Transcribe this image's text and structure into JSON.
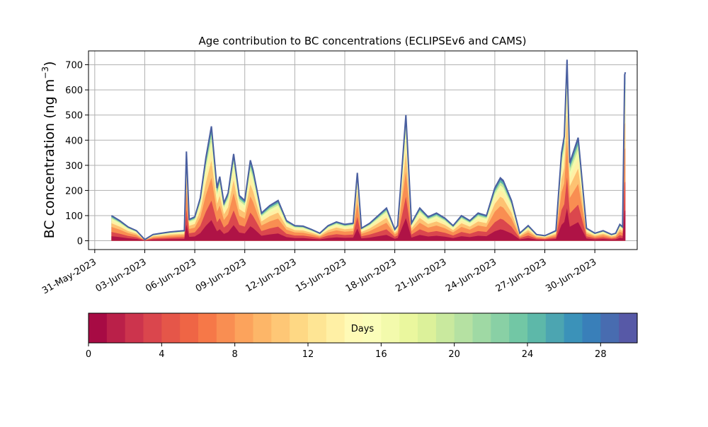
{
  "chart_data": {
    "type": "area",
    "title": "Age contribution to BC concentrations (ECLIPSEv6 and CAMS)",
    "ylabel": "BC concentration (ng m",
    "ylabel_sup": "−3",
    "ylabel_close": ")",
    "xlabel": "",
    "ylim": [
      -35,
      755
    ],
    "yticks": [
      0,
      100,
      200,
      300,
      400,
      500,
      600,
      700
    ],
    "xlim": [
      "2023-05-30T15:00",
      "2023-07-02T13:00"
    ],
    "xticks": [
      "31-May-2023",
      "03-Jun-2023",
      "06-Jun-2023",
      "09-Jun-2023",
      "12-Jun-2023",
      "15-Jun-2023",
      "18-Jun-2023",
      "21-Jun-2023",
      "24-Jun-2023",
      "27-Jun-2023",
      "30-Jun-2023"
    ],
    "xtick_dates": [
      "2023-05-31",
      "2023-06-03",
      "2023-06-06",
      "2023-06-09",
      "2023-06-12",
      "2023-06-15",
      "2023-06-18",
      "2023-06-21",
      "2023-06-24",
      "2023-06-27",
      "2023-06-30"
    ],
    "grid": true,
    "series_total": {
      "x": [
        "2023-06-01T00:00",
        "2023-06-01T12:00",
        "2023-06-02T00:00",
        "2023-06-02T12:00",
        "2023-06-03T00:00",
        "2023-06-03T12:00",
        "2023-06-04T00:00",
        "2023-06-04T12:00",
        "2023-06-05T00:00",
        "2023-06-05T09:00",
        "2023-06-05T12:00",
        "2023-06-05T16:00",
        "2023-06-06T00:00",
        "2023-06-06T08:00",
        "2023-06-06T16:00",
        "2023-06-07T00:00",
        "2023-06-07T08:00",
        "2023-06-07T12:00",
        "2023-06-07T18:00",
        "2023-06-08T00:00",
        "2023-06-08T08:00",
        "2023-06-08T16:00",
        "2023-06-09T00:00",
        "2023-06-09T08:00",
        "2023-06-09T12:00",
        "2023-06-10T00:00",
        "2023-06-10T12:00",
        "2023-06-11T00:00",
        "2023-06-11T12:00",
        "2023-06-12T00:00",
        "2023-06-12T12:00",
        "2023-06-13T00:00",
        "2023-06-13T12:00",
        "2023-06-14T00:00",
        "2023-06-14T12:00",
        "2023-06-15T00:00",
        "2023-06-15T12:00",
        "2023-06-15T18:00",
        "2023-06-16T00:00",
        "2023-06-16T12:00",
        "2023-06-17T00:00",
        "2023-06-17T12:00",
        "2023-06-18T00:00",
        "2023-06-18T04:00",
        "2023-06-18T08:00",
        "2023-06-18T16:00",
        "2023-06-19T00:00",
        "2023-06-19T12:00",
        "2023-06-20T00:00",
        "2023-06-20T12:00",
        "2023-06-21T00:00",
        "2023-06-21T12:00",
        "2023-06-22T00:00",
        "2023-06-22T12:00",
        "2023-06-23T00:00",
        "2023-06-23T12:00",
        "2023-06-24T00:00",
        "2023-06-24T08:00",
        "2023-06-24T12:00",
        "2023-06-25T00:00",
        "2023-06-25T12:00",
        "2023-06-26T00:00",
        "2023-06-26T12:00",
        "2023-06-27T00:00",
        "2023-06-27T08:00",
        "2023-06-27T16:00",
        "2023-06-28T00:00",
        "2023-06-28T04:00",
        "2023-06-28T08:00",
        "2023-06-28T12:00",
        "2023-06-29T00:00",
        "2023-06-29T12:00",
        "2023-06-30T00:00",
        "2023-06-30T12:00",
        "2023-07-01T00:00",
        "2023-07-01T06:00",
        "2023-07-01T12:00",
        "2023-07-01T16:00",
        "2023-07-01T19:00",
        "2023-07-01T20:00"
      ],
      "y": [
        100,
        80,
        55,
        40,
        5,
        25,
        30,
        35,
        38,
        40,
        355,
        85,
        95,
        170,
        330,
        455,
        210,
        255,
        150,
        190,
        345,
        180,
        160,
        320,
        280,
        110,
        140,
        160,
        80,
        60,
        58,
        45,
        30,
        60,
        75,
        65,
        70,
        270,
        50,
        70,
        100,
        130,
        45,
        60,
        200,
        500,
        70,
        130,
        95,
        110,
        90,
        60,
        100,
        80,
        110,
        100,
        210,
        250,
        240,
        160,
        30,
        60,
        25,
        20,
        30,
        40,
        350,
        415,
        720,
        310,
        410,
        50,
        30,
        40,
        25,
        30,
        65,
        55,
        660,
        670
      ]
    },
    "age_colorbar": {
      "label": "Days",
      "range": [
        0,
        30
      ],
      "ticks": [
        0,
        4,
        8,
        12,
        16,
        20,
        24,
        28
      ],
      "bins": 30,
      "colormap": [
        "#9e0142",
        "#d53e4f",
        "#f46d43",
        "#fdae61",
        "#fee08b",
        "#ffffbf",
        "#e6f598",
        "#abdda4",
        "#66c2a5",
        "#3288bd",
        "#5e4fa2"
      ]
    }
  }
}
